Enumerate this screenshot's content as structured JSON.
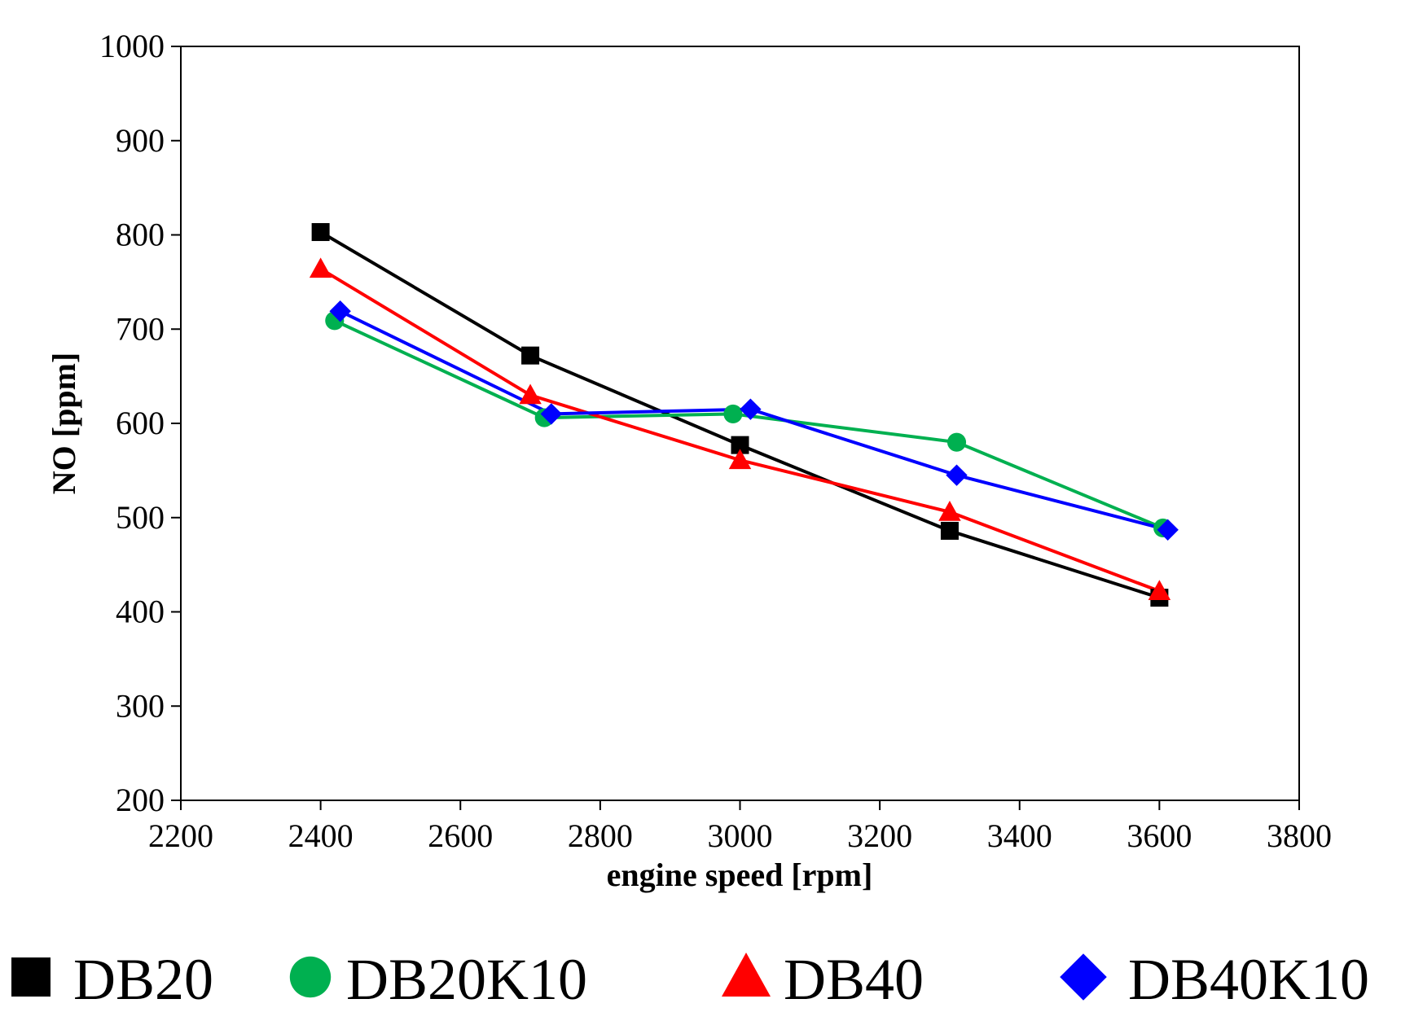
{
  "chart_data": {
    "type": "line",
    "title": "",
    "xlabel": "engine speed [rpm]",
    "ylabel": "NO [ppm]",
    "xlim": [
      2200,
      3800
    ],
    "ylim": [
      200,
      1000
    ],
    "xticks": [
      2200,
      2400,
      2600,
      2800,
      3000,
      3200,
      3400,
      3600,
      3800
    ],
    "yticks": [
      200,
      300,
      400,
      500,
      600,
      700,
      800,
      900,
      1000
    ],
    "grid": false,
    "legend_position": "bottom",
    "series": [
      {
        "name": "DB20",
        "color": "#000000",
        "marker": "square",
        "x": [
          2400,
          2700,
          3000,
          3300,
          3600
        ],
        "y": [
          803,
          672,
          577,
          486,
          415
        ]
      },
      {
        "name": "DB20K10",
        "color": "#00b050",
        "marker": "circle",
        "x": [
          2420,
          2720,
          2990,
          3310,
          3605
        ],
        "y": [
          709,
          606,
          610,
          580,
          489
        ]
      },
      {
        "name": "DB40",
        "color": "#ff0000",
        "marker": "triangle",
        "x": [
          2400,
          2700,
          3000,
          3300,
          3600
        ],
        "y": [
          764,
          630,
          561,
          506,
          422
        ]
      },
      {
        "name": "DB40K10",
        "color": "#0000ff",
        "marker": "diamond",
        "x": [
          2428,
          2730,
          3015,
          3310,
          3612
        ],
        "y": [
          719,
          610,
          615,
          545,
          487
        ]
      }
    ]
  }
}
